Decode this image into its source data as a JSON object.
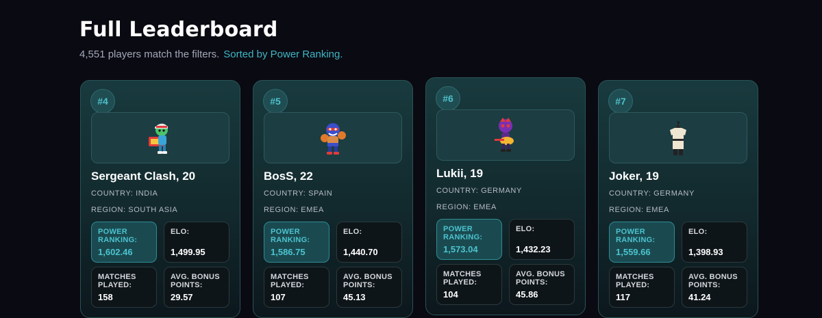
{
  "header": {
    "title": "Full Leaderboard",
    "count_text": "4,551 players match the filters.",
    "sort_text": "Sorted by Power Ranking."
  },
  "labels": {
    "power_ranking": "POWER RANKING:",
    "elo": "ELO:",
    "matches_played": "MATCHES PLAYED:",
    "avg_bonus": "AVG. BONUS POINTS:"
  },
  "players": [
    {
      "rank": "#4",
      "name": "Sergeant Clash, 20",
      "country": "COUNTRY: INDIA",
      "region": "REGION: SOUTH ASIA",
      "power_ranking": "1,602.46",
      "elo": "1,499.95",
      "matches_played": "158",
      "avg_bonus": "29.57",
      "avatar": "brawler-green-cap-avatar-icon"
    },
    {
      "rank": "#5",
      "name": "BosS, 22",
      "country": "COUNTRY: SPAIN",
      "region": "REGION: EMEA",
      "power_ranking": "1,586.75",
      "elo": "1,440.70",
      "matches_played": "107",
      "avg_bonus": "45.13",
      "avatar": "brawler-luchador-avatar-icon"
    },
    {
      "rank": "#6",
      "name": "Lukii, 19",
      "country": "COUNTRY: GERMANY",
      "region": "REGION: EMEA",
      "power_ranking": "1,573.04",
      "elo": "1,432.23",
      "matches_played": "104",
      "avg_bonus": "45.86",
      "avatar": "brawler-purple-guitar-avatar-icon"
    },
    {
      "rank": "#7",
      "name": "Joker, 19",
      "country": "COUNTRY: GERMANY",
      "region": "REGION: EMEA",
      "power_ranking": "1,559.66",
      "elo": "1,398.93",
      "matches_played": "117",
      "avg_bonus": "41.24",
      "avatar": "shirt-mystery-avatar-icon"
    }
  ],
  "colors": {
    "background": "#0a0a12",
    "accent": "#3fb6c4",
    "card_border": "#2a5356"
  }
}
